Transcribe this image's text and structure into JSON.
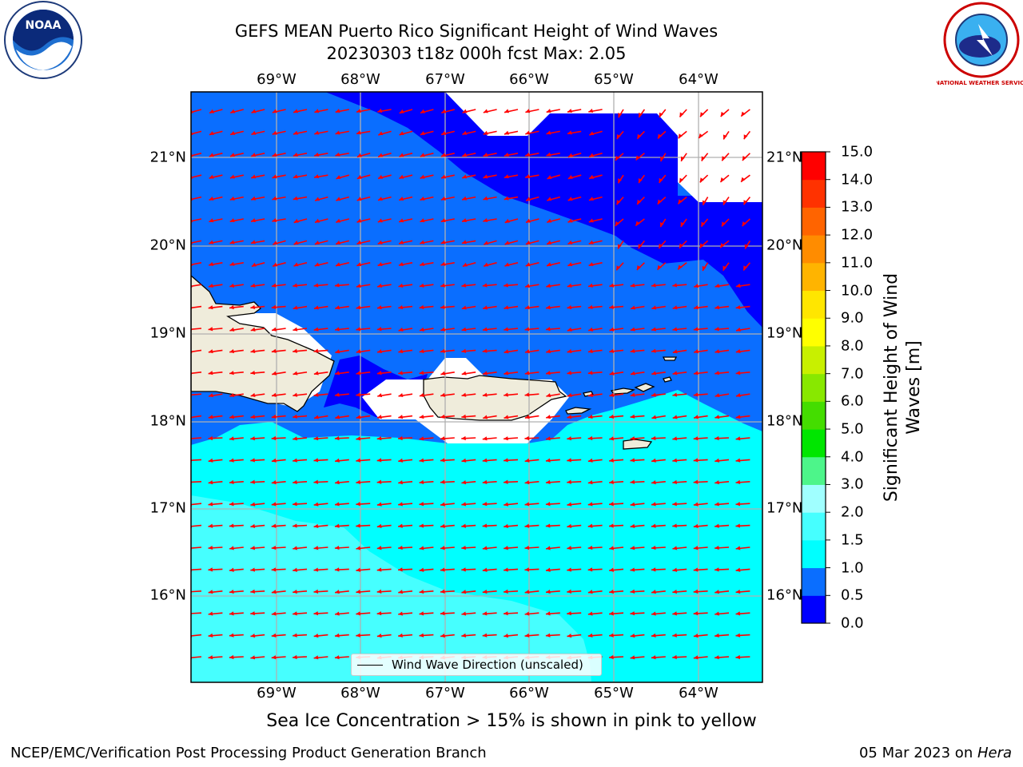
{
  "title": {
    "line1": "GEFS MEAN Puerto Rico Significant Height of Wind Waves",
    "line2": "20230303 t18z 000h fcst   Max: 2.05"
  },
  "axes": {
    "lon_labels": [
      "69°W",
      "68°W",
      "67°W",
      "66°W",
      "65°W",
      "64°W"
    ],
    "lat_labels": [
      "21°N",
      "20°N",
      "19°N",
      "18°N",
      "17°N",
      "16°N"
    ]
  },
  "legend": {
    "label": "Wind Wave Direction (unscaled)"
  },
  "colorbar": {
    "title": "Significant Height of Wind Waves [m]",
    "tick_labels": [
      "0.0",
      "0.5",
      "1.0",
      "1.5",
      "2.0",
      "3.0",
      "4.0",
      "5.0",
      "6.0",
      "7.0",
      "8.0",
      "9.0",
      "10.0",
      "11.0",
      "12.0",
      "13.0",
      "14.0",
      "15.0"
    ],
    "colors": [
      "#0000ff",
      "#0a6eff",
      "#00ffff",
      "#46ffff",
      "#a0ffff",
      "#4df58a",
      "#00e600",
      "#44dd00",
      "#88e800",
      "#c8f000",
      "#ffff00",
      "#ffe600",
      "#ffb400",
      "#ff8c00",
      "#ff6400",
      "#ff3200",
      "#ff0000"
    ]
  },
  "map": {
    "colors": {
      "band_0_05": "#0000ff",
      "band_05_10": "#0a6eff",
      "band_10_15": "#00ffff",
      "band_15_20": "#46ffff",
      "land": "#efecdb",
      "arrow": "#ff0000",
      "grid": "#b0b0b0"
    }
  },
  "footer": {
    "note": "Sea Ice Concentration > 15% is shown in pink to yellow",
    "left": "NCEP/EMC/Verification Post Processing Product Generation Branch",
    "right_prefix": "05 Mar 2023 on ",
    "right_italic": "Hera"
  },
  "logos": {
    "noaa_text": "NOAA",
    "nws_text": "NATIONAL WEATHER SERVICE"
  }
}
